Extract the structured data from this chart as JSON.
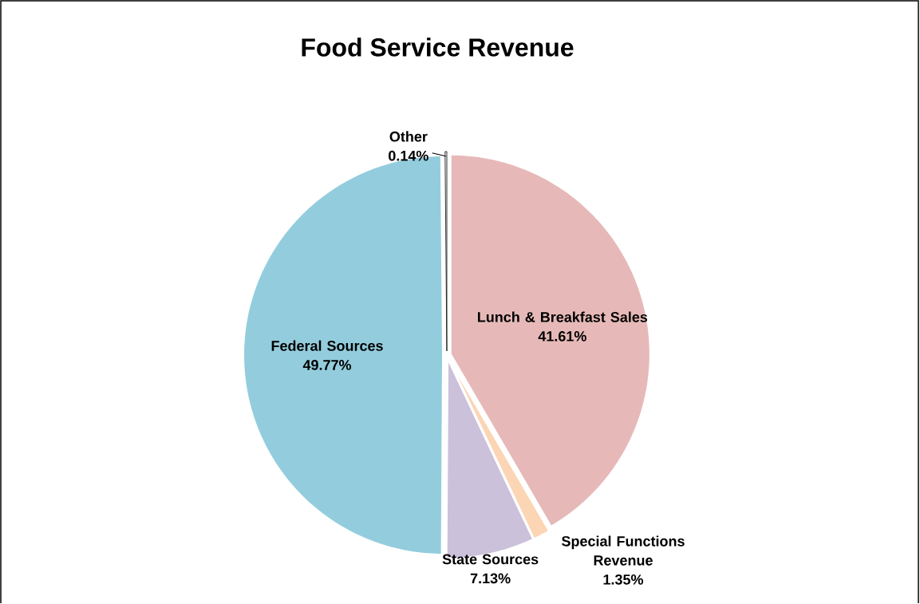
{
  "chart_data": {
    "type": "pie",
    "title": "Food Service Revenue",
    "categories": [
      "Lunch & Breakfast Sales",
      "Special Functions Revenue",
      "State Sources",
      "Federal Sources",
      "Other"
    ],
    "values": [
      41.61,
      1.35,
      7.13,
      49.77,
      0.14
    ],
    "value_labels": [
      "41.61%",
      "1.35%",
      "7.13%",
      "49.77%",
      "0.14%"
    ],
    "colors": [
      "#e6b9b8",
      "#fcd5b5",
      "#ccc1da",
      "#93cddd",
      "#ffffff"
    ]
  }
}
